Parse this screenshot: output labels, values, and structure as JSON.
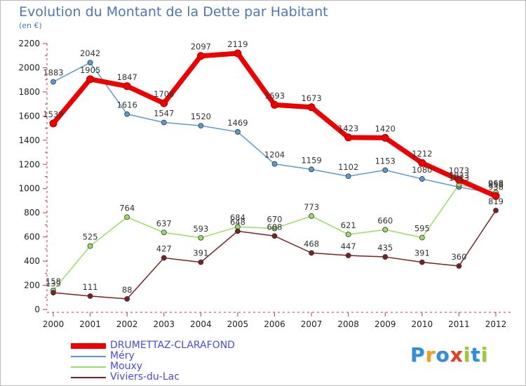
{
  "title": "Evolution du Montant de la Dette par Habitant",
  "subtitle": "(en €)",
  "logo": {
    "text": "Proxiti",
    "letters": [
      {
        "ch": "P",
        "color": "#2f8fd8"
      },
      {
        "ch": "r",
        "color": "#f0a020"
      },
      {
        "ch": "o",
        "color": "#2f8fd8"
      },
      {
        "ch": "x",
        "color": "#e04020"
      },
      {
        "ch": "i",
        "color": "#9acd32"
      },
      {
        "ch": "t",
        "color": "#2f8fd8"
      },
      {
        "ch": "i",
        "color": "#9acd32"
      }
    ]
  },
  "chart_data": {
    "type": "line",
    "x": [
      2000,
      2001,
      2002,
      2003,
      2004,
      2005,
      2006,
      2007,
      2008,
      2009,
      2010,
      2011,
      2012
    ],
    "ylim": [
      0,
      2200
    ],
    "yticks": [
      0,
      200,
      400,
      600,
      800,
      1000,
      1200,
      1400,
      1600,
      1800,
      2000,
      2200
    ],
    "grid": false,
    "legend_position": "bottom-left",
    "series": [
      {
        "name": "DRUMETTAZ-CLARAFOND",
        "color": "#ee0000",
        "width": 7,
        "marker": 5,
        "values": [
          1539,
          1905,
          1847,
          1706,
          2097,
          2119,
          1693,
          1673,
          1423,
          1420,
          1212,
          1073,
          938
        ],
        "labels": [
          "1539",
          "1905",
          "1847",
          "1706",
          "2097",
          "2119",
          "1693",
          "1673",
          "1423",
          "1420",
          "1212",
          "1073",
          "938"
        ]
      },
      {
        "name": "Méry",
        "color": "#5b9bd5",
        "width": 1.5,
        "marker": 3.5,
        "values": [
          1883,
          2042,
          1616,
          1547,
          1520,
          1469,
          1204,
          1159,
          1102,
          1153,
          1080,
          1013,
          958
        ],
        "labels": [
          "1883",
          "2042",
          "1616",
          "1547",
          "1520",
          "1469",
          "1204",
          "1159",
          "1102",
          "1153",
          "1080",
          "1013",
          "958"
        ]
      },
      {
        "name": "Mouxy",
        "color": "#99dd66",
        "width": 1.5,
        "marker": 3.5,
        "values": [
          158,
          525,
          764,
          637,
          593,
          684,
          670,
          773,
          621,
          660,
          595,
          1033,
          968
        ],
        "labels": [
          "158",
          "525",
          "764",
          "637",
          "593",
          "684",
          "670",
          "773",
          "621",
          "660",
          "595",
          "1033",
          "968"
        ]
      },
      {
        "name": "Viviers-du-Lac",
        "color": "#7a2222",
        "width": 1.5,
        "marker": 3.5,
        "values": [
          139,
          111,
          88,
          427,
          391,
          648,
          608,
          468,
          447,
          435,
          391,
          360,
          819
        ],
        "labels": [
          "139",
          "111",
          "88",
          "427",
          "391",
          "648",
          "608",
          "468",
          "447",
          "435",
          "391",
          "360",
          "819"
        ]
      }
    ]
  }
}
